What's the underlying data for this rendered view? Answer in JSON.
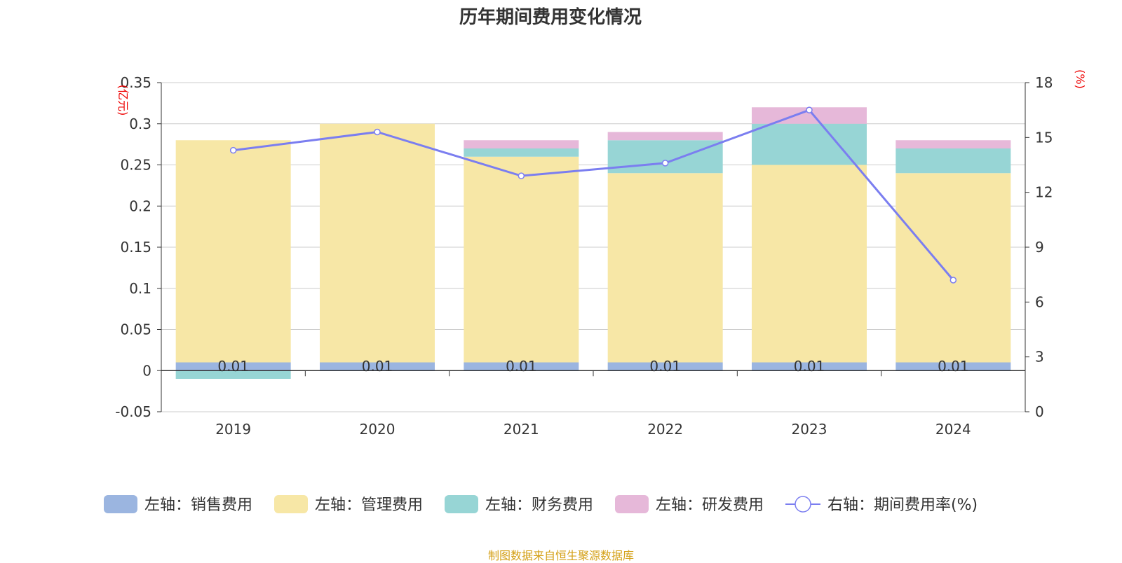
{
  "title": "历年期间费用变化情况",
  "source_note": "制图数据来自恒生聚源数据库",
  "colors": {
    "sales": "#9bb5e0",
    "admin": "#f7e7a6",
    "finance": "#97d5d5",
    "rd": "#e6b8d9",
    "ratio": "#7b7ef0"
  },
  "chart_data": {
    "type": "bar",
    "categories": [
      "2019",
      "2020",
      "2021",
      "2022",
      "2023",
      "2024"
    ],
    "left_axis": {
      "label": "(亿元)",
      "ylim": [
        -0.05,
        0.35
      ],
      "ticks": [
        "-0.05",
        "0",
        "0.05",
        "0.1",
        "0.15",
        "0.2",
        "0.25",
        "0.3",
        "0.35"
      ]
    },
    "right_axis": {
      "label": "(%)",
      "ylim": [
        0,
        18
      ],
      "ticks": [
        "0",
        "3",
        "6",
        "9",
        "12",
        "15",
        "18"
      ]
    },
    "series": [
      {
        "key": "sales",
        "name": "左轴：销售费用",
        "kind": "bar",
        "axis": "left",
        "values": [
          0.01,
          0.01,
          0.01,
          0.01,
          0.01,
          0.01
        ],
        "labels": [
          "0.01",
          "0.01",
          "0.01",
          "0.01",
          "0.01",
          "0.01"
        ]
      },
      {
        "key": "admin",
        "name": "左轴：管理费用",
        "kind": "bar",
        "axis": "left",
        "values": [
          0.27,
          0.29,
          0.25,
          0.23,
          0.24,
          0.23
        ]
      },
      {
        "key": "finance",
        "name": "左轴：财务费用",
        "kind": "bar",
        "axis": "left",
        "values": [
          -0.01,
          0.0,
          0.01,
          0.04,
          0.05,
          0.03
        ]
      },
      {
        "key": "rd",
        "name": "左轴：研发费用",
        "kind": "bar",
        "axis": "left",
        "values": [
          0.0,
          0.0,
          0.01,
          0.01,
          0.02,
          0.01
        ]
      },
      {
        "key": "ratio",
        "name": "右轴：期间费用率(%)",
        "kind": "line",
        "axis": "right",
        "values": [
          14.3,
          15.3,
          12.9,
          13.6,
          16.5,
          7.2
        ]
      }
    ],
    "grid": true,
    "legend_position": "bottom"
  }
}
